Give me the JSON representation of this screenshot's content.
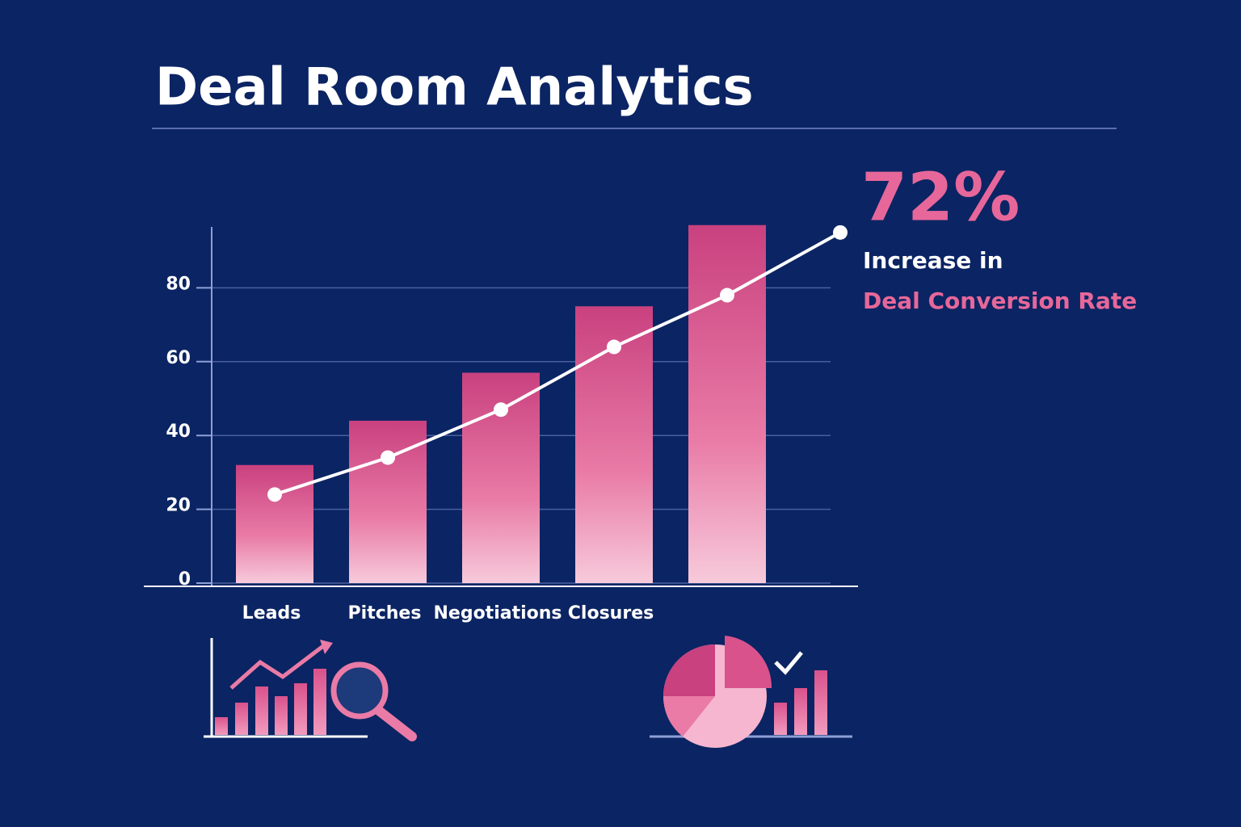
{
  "chart_data": {
    "type": "bar",
    "title": "Deal Room Analytics",
    "categories": [
      "Leads",
      "Pitches",
      "Negotiations",
      "Closures",
      null,
      null
    ],
    "values": [
      32,
      44,
      57,
      75,
      97,
      null
    ],
    "color": "#c9417f",
    "line": {
      "color": "#ffffff",
      "values": [
        24,
        34,
        47,
        64,
        78,
        95
      ]
    },
    "ylim": [
      0,
      100
    ],
    "yticks": [
      0,
      20,
      40,
      60,
      80
    ],
    "grid": true,
    "callout": {
      "value": "72%",
      "line1": "Increase in",
      "line2": "Deal Conversion Rate"
    }
  }
}
